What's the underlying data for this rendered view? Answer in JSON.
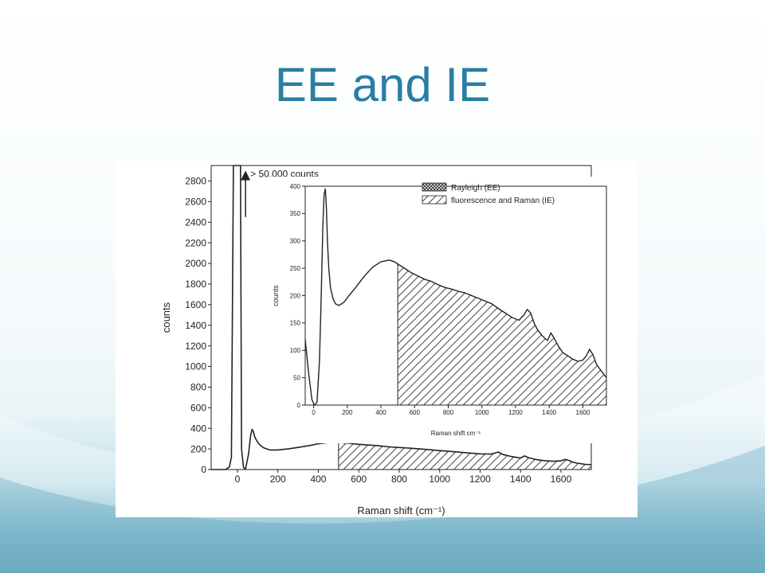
{
  "slide": {
    "title": "EE and IE"
  },
  "chart_data": [
    {
      "id": "main",
      "type": "line",
      "xlabel": "Raman shift (cm⁻¹)",
      "ylabel": "counts",
      "xlim": [
        -130,
        1750
      ],
      "ylim": [
        0,
        2950
      ],
      "xticks": [
        0,
        200,
        400,
        600,
        800,
        1000,
        1200,
        1400,
        1600
      ],
      "yticks": [
        0,
        200,
        400,
        600,
        800,
        1000,
        1200,
        1400,
        1600,
        1800,
        2000,
        2200,
        2400,
        2600,
        2800
      ],
      "annotation": "> 50,000 counts",
      "annotation_x": 40,
      "annotation_y_range": [
        2450,
        2900
      ],
      "boundary_x": 500,
      "series": [
        {
          "x": [
            -130,
            -60,
            -40,
            -30,
            -20,
            -15,
            -10,
            -5,
            -2,
            0,
            2,
            5,
            10,
            15,
            20,
            30,
            40,
            55,
            65,
            72,
            78,
            85,
            95,
            110,
            130,
            160,
            200,
            250,
            300,
            350,
            400,
            450,
            500,
            550,
            600,
            650,
            700,
            750,
            800,
            850,
            900,
            950,
            1000,
            1050,
            1100,
            1150,
            1200,
            1250,
            1270,
            1290,
            1310,
            1350,
            1380,
            1400,
            1420,
            1440,
            1480,
            1520,
            1560,
            1600,
            1620,
            1640,
            1660,
            1680,
            1700,
            1720,
            1750
          ],
          "y": [
            0,
            0,
            25,
            120,
            2950,
            2950,
            2950,
            2950,
            2950,
            2950,
            2950,
            2950,
            2950,
            2950,
            200,
            20,
            5,
            150,
            330,
            390,
            370,
            320,
            280,
            240,
            210,
            190,
            190,
            200,
            215,
            230,
            250,
            262,
            262,
            255,
            245,
            238,
            230,
            220,
            214,
            208,
            200,
            192,
            184,
            176,
            168,
            160,
            152,
            150,
            158,
            170,
            148,
            128,
            118,
            112,
            132,
            115,
            96,
            86,
            80,
            84,
            98,
            88,
            70,
            62,
            56,
            50,
            48
          ]
        }
      ],
      "legend": []
    },
    {
      "id": "inset",
      "type": "area",
      "xlabel": "Raman shift cm⁻¹",
      "ylabel": "counts",
      "xlim": [
        -50,
        1740
      ],
      "ylim": [
        0,
        400
      ],
      "xticks": [
        0,
        200,
        400,
        600,
        800,
        1000,
        1200,
        1400,
        1600
      ],
      "yticks": [
        0,
        50,
        100,
        150,
        200,
        250,
        300,
        350,
        400
      ],
      "boundary_x": 500,
      "legend_position": "top-right",
      "legend": [
        {
          "label": "Rayleigh (EE)",
          "pattern": "crosshatch"
        },
        {
          "label": "fluorescence and Raman (IE)",
          "pattern": "diagonal"
        }
      ],
      "series": [
        {
          "x": [
            -50,
            -30,
            -10,
            5,
            20,
            35,
            45,
            55,
            62,
            70,
            76,
            82,
            90,
            100,
            115,
            130,
            150,
            180,
            210,
            250,
            300,
            350,
            400,
            450,
            480,
            500,
            540,
            580,
            620,
            660,
            700,
            740,
            780,
            820,
            860,
            900,
            940,
            980,
            1020,
            1060,
            1100,
            1140,
            1180,
            1220,
            1250,
            1270,
            1290,
            1310,
            1330,
            1360,
            1390,
            1410,
            1430,
            1450,
            1480,
            1510,
            1540,
            1570,
            1600,
            1620,
            1640,
            1660,
            1680,
            1700,
            1720,
            1740
          ],
          "y": [
            120,
            60,
            10,
            0,
            5,
            80,
            200,
            330,
            385,
            395,
            360,
            300,
            250,
            215,
            195,
            185,
            182,
            188,
            200,
            215,
            235,
            252,
            262,
            265,
            262,
            258,
            250,
            242,
            236,
            230,
            226,
            220,
            215,
            212,
            208,
            205,
            200,
            195,
            190,
            185,
            176,
            168,
            160,
            155,
            165,
            175,
            168,
            150,
            138,
            126,
            118,
            132,
            122,
            110,
            96,
            90,
            84,
            80,
            82,
            90,
            102,
            92,
            75,
            66,
            58,
            50
          ]
        }
      ]
    }
  ]
}
